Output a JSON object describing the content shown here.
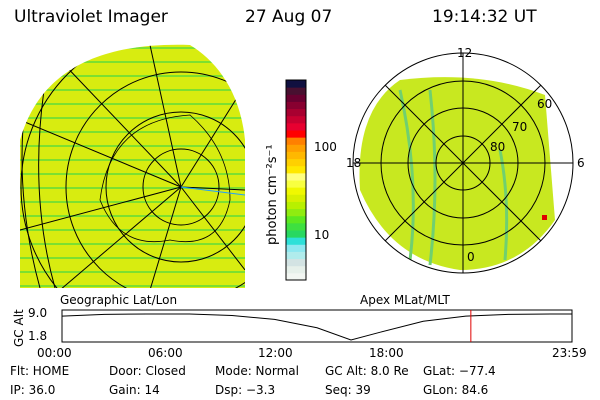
{
  "header": {
    "title": "Ultraviolet Imager",
    "date": "27 Aug 07",
    "time": "19:14:32 UT"
  },
  "colorbar": {
    "label": "photon cm⁻²s⁻¹",
    "ticks": [
      "100",
      "10"
    ],
    "colors": [
      "#f2f6f2",
      "#e6f0ea",
      "#d3e3e3",
      "#b0ecec",
      "#8ee8f0",
      "#2ee0d8",
      "#28d860",
      "#3ee040",
      "#5ce820",
      "#90ec10",
      "#b8f000",
      "#d8f000",
      "#f0f800",
      "#f8ff40",
      "#ffff80",
      "#ffe800",
      "#ffd000",
      "#ffb800",
      "#ffa000",
      "#ff8000",
      "#ff0000",
      "#e80030",
      "#c80030",
      "#a80030",
      "#880030",
      "#680030",
      "#481030",
      "#101040"
    ]
  },
  "polar": {
    "labels": [
      "12",
      "18",
      "6",
      "0",
      "60",
      "70",
      "80"
    ]
  },
  "timeline": {
    "left_label": "Geographic Lat/Lon",
    "right_label": "Apex MLat/MLT",
    "ylabel": "GC Alt",
    "yticks": [
      "9.0",
      "1.8"
    ],
    "xticks": [
      "00:00",
      "06:00",
      "12:00",
      "18:00",
      "23:59"
    ],
    "marker_hour": 19.24,
    "chart_data": {
      "type": "line",
      "ylabel": "GC Alt",
      "ylim": [
        1.8,
        9.0
      ],
      "x": [
        0,
        2,
        4,
        6,
        8,
        10,
        12,
        13.6,
        15,
        17,
        19,
        21,
        23,
        24
      ],
      "y": [
        8.4,
        8.9,
        9.0,
        9.0,
        8.6,
        7.5,
        5.2,
        1.8,
        4.0,
        7.0,
        8.4,
        8.9,
        9.0,
        9.0
      ]
    }
  },
  "status": [
    [
      "Flt: HOME",
      "Door: Closed",
      "Mode: Normal",
      "GC Alt: 8.0 Re",
      "GLat: −77.4"
    ],
    [
      "IP: 36.0",
      "Gain: 14",
      "Dsp:    −3.3",
      "Seq: 39",
      "GLon:  84.6"
    ]
  ]
}
